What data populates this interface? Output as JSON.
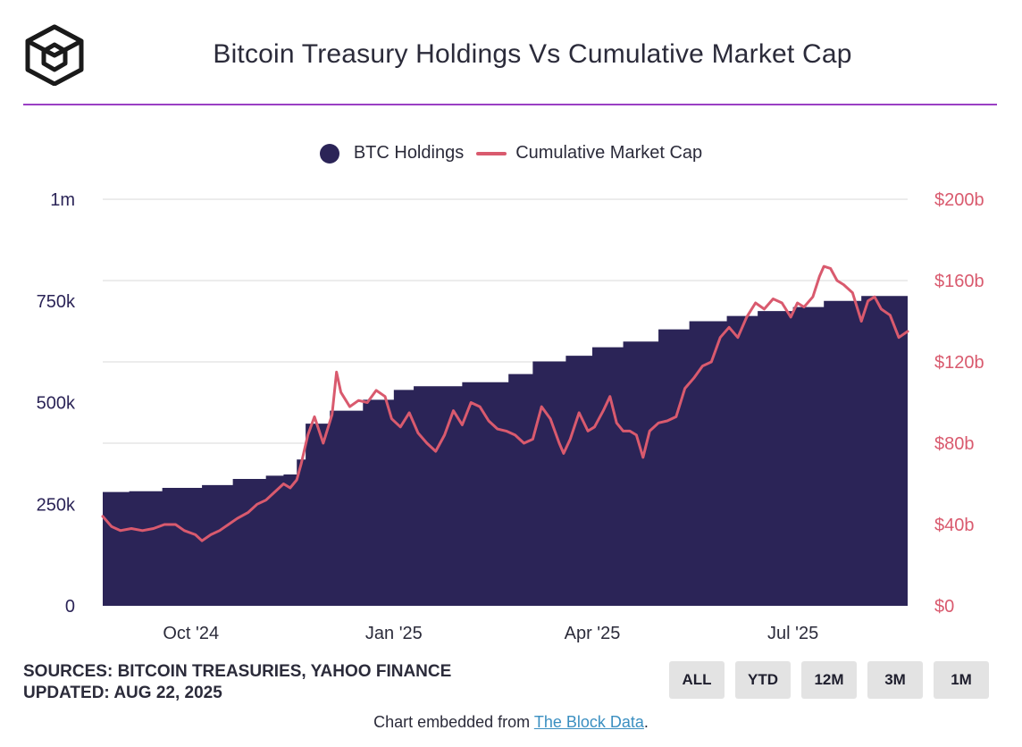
{
  "header": {
    "title": "Bitcoin Treasury Holdings Vs Cumulative Market Cap",
    "logo_icon": "the-block-cube-logo"
  },
  "legend": {
    "holdings_label": "BTC Holdings",
    "marketcap_label": "Cumulative Market Cap"
  },
  "footer": {
    "sources": "SOURCES: BITCOIN TREASURIES, YAHOO FINANCE",
    "updated": "UPDATED: AUG 22, 2025",
    "embed_prefix": "Chart embedded from ",
    "embed_link": "The Block Data",
    "embed_suffix": "."
  },
  "range_buttons": [
    "ALL",
    "YTD",
    "12M",
    "3M",
    "1M"
  ],
  "colors": {
    "holdings": "#2b2457",
    "marketcap": "#d95a6e",
    "accent_rule": "#9a3fc4",
    "grid": "#e6e6e6"
  },
  "chart_data": {
    "type": "area+line",
    "x_range": [
      "2024-08-22",
      "2025-08-22"
    ],
    "x_ticks": [
      {
        "date": "2024-10-01",
        "label": "Oct '24"
      },
      {
        "date": "2025-01-01",
        "label": "Jan '25"
      },
      {
        "date": "2025-04-01",
        "label": "Apr '25"
      },
      {
        "date": "2025-07-01",
        "label": "Jul '25"
      }
    ],
    "y_left": {
      "range": [
        0,
        1000000
      ],
      "ticks": [
        0,
        250000,
        500000,
        750000,
        1000000
      ],
      "tick_labels": [
        "0",
        "250k",
        "500k",
        "750k",
        "1m"
      ]
    },
    "y_right": {
      "range": [
        0,
        200
      ],
      "unit": "$b",
      "ticks": [
        0,
        40,
        80,
        120,
        160,
        200
      ],
      "tick_labels": [
        "$0",
        "$40b",
        "$80b",
        "$120b",
        "$160b",
        "$200b"
      ]
    },
    "series": [
      {
        "name": "BTC Holdings",
        "type": "step-area",
        "axis": "left",
        "points": [
          [
            "2024-08-22",
            280000
          ],
          [
            "2024-09-03",
            282000
          ],
          [
            "2024-09-18",
            290000
          ],
          [
            "2024-10-06",
            297000
          ],
          [
            "2024-10-20",
            312000
          ],
          [
            "2024-11-04",
            320000
          ],
          [
            "2024-11-12",
            323000
          ],
          [
            "2024-11-18",
            360000
          ],
          [
            "2024-11-22",
            448000
          ],
          [
            "2024-12-03",
            480000
          ],
          [
            "2024-12-18",
            507000
          ],
          [
            "2025-01-01",
            531000
          ],
          [
            "2025-01-10",
            540000
          ],
          [
            "2025-02-01",
            550000
          ],
          [
            "2025-02-22",
            570000
          ],
          [
            "2025-03-05",
            601000
          ],
          [
            "2025-03-20",
            615000
          ],
          [
            "2025-04-01",
            636000
          ],
          [
            "2025-04-15",
            650000
          ],
          [
            "2025-05-01",
            680000
          ],
          [
            "2025-05-15",
            700000
          ],
          [
            "2025-06-01",
            713000
          ],
          [
            "2025-06-15",
            725000
          ],
          [
            "2025-07-01",
            735000
          ],
          [
            "2025-07-15",
            750000
          ],
          [
            "2025-08-01",
            762000
          ],
          [
            "2025-08-22",
            774000
          ]
        ]
      },
      {
        "name": "Cumulative Market Cap",
        "type": "line",
        "axis": "right",
        "points": [
          [
            "2024-08-22",
            44
          ],
          [
            "2024-08-26",
            39
          ],
          [
            "2024-08-30",
            37
          ],
          [
            "2024-09-04",
            38
          ],
          [
            "2024-09-09",
            37
          ],
          [
            "2024-09-14",
            38
          ],
          [
            "2024-09-19",
            40
          ],
          [
            "2024-09-24",
            40
          ],
          [
            "2024-09-28",
            37
          ],
          [
            "2024-10-03",
            35
          ],
          [
            "2024-10-06",
            32
          ],
          [
            "2024-10-10",
            35
          ],
          [
            "2024-10-14",
            37
          ],
          [
            "2024-10-18",
            40
          ],
          [
            "2024-10-22",
            43
          ],
          [
            "2024-10-27",
            46
          ],
          [
            "2024-10-31",
            50
          ],
          [
            "2024-11-04",
            52
          ],
          [
            "2024-11-08",
            56
          ],
          [
            "2024-11-12",
            60
          ],
          [
            "2024-11-15",
            58
          ],
          [
            "2024-11-18",
            62
          ],
          [
            "2024-11-20",
            70
          ],
          [
            "2024-11-23",
            84
          ],
          [
            "2024-11-26",
            93
          ],
          [
            "2024-11-30",
            80
          ],
          [
            "2024-12-04",
            94
          ],
          [
            "2024-12-06",
            115
          ],
          [
            "2024-12-08",
            105
          ],
          [
            "2024-12-12",
            98
          ],
          [
            "2024-12-16",
            101
          ],
          [
            "2024-12-20",
            100
          ],
          [
            "2024-12-24",
            106
          ],
          [
            "2024-12-28",
            103
          ],
          [
            "2024-12-31",
            92
          ],
          [
            "2025-01-04",
            88
          ],
          [
            "2025-01-08",
            95
          ],
          [
            "2025-01-12",
            85
          ],
          [
            "2025-01-16",
            80
          ],
          [
            "2025-01-20",
            76
          ],
          [
            "2025-01-24",
            84
          ],
          [
            "2025-01-28",
            96
          ],
          [
            "2025-02-01",
            89
          ],
          [
            "2025-02-05",
            100
          ],
          [
            "2025-02-09",
            98
          ],
          [
            "2025-02-13",
            91
          ],
          [
            "2025-02-17",
            87
          ],
          [
            "2025-02-21",
            86
          ],
          [
            "2025-02-25",
            84
          ],
          [
            "2025-03-01",
            80
          ],
          [
            "2025-03-05",
            82
          ],
          [
            "2025-03-09",
            98
          ],
          [
            "2025-03-13",
            92
          ],
          [
            "2025-03-17",
            80
          ],
          [
            "2025-03-19",
            75
          ],
          [
            "2025-03-22",
            82
          ],
          [
            "2025-03-26",
            95
          ],
          [
            "2025-03-30",
            86
          ],
          [
            "2025-04-02",
            88
          ],
          [
            "2025-04-06",
            96
          ],
          [
            "2025-04-09",
            103
          ],
          [
            "2025-04-12",
            90
          ],
          [
            "2025-04-15",
            86
          ],
          [
            "2025-04-18",
            86
          ],
          [
            "2025-04-21",
            84
          ],
          [
            "2025-04-24",
            73
          ],
          [
            "2025-04-27",
            86
          ],
          [
            "2025-05-01",
            90
          ],
          [
            "2025-05-05",
            91
          ],
          [
            "2025-05-09",
            93
          ],
          [
            "2025-05-13",
            107
          ],
          [
            "2025-05-17",
            112
          ],
          [
            "2025-05-21",
            118
          ],
          [
            "2025-05-25",
            120
          ],
          [
            "2025-05-29",
            132
          ],
          [
            "2025-06-02",
            137
          ],
          [
            "2025-06-06",
            132
          ],
          [
            "2025-06-10",
            142
          ],
          [
            "2025-06-14",
            149
          ],
          [
            "2025-06-18",
            146
          ],
          [
            "2025-06-22",
            151
          ],
          [
            "2025-06-26",
            149
          ],
          [
            "2025-06-30",
            142
          ],
          [
            "2025-07-03",
            149
          ],
          [
            "2025-07-06",
            147
          ],
          [
            "2025-07-10",
            152
          ],
          [
            "2025-07-13",
            162
          ],
          [
            "2025-07-15",
            167
          ],
          [
            "2025-07-18",
            166
          ],
          [
            "2025-07-21",
            160
          ],
          [
            "2025-07-24",
            158
          ],
          [
            "2025-07-28",
            154
          ],
          [
            "2025-08-01",
            140
          ],
          [
            "2025-08-04",
            150
          ],
          [
            "2025-08-07",
            152
          ],
          [
            "2025-08-10",
            146
          ],
          [
            "2025-08-14",
            143
          ],
          [
            "2025-08-18",
            132
          ],
          [
            "2025-08-22",
            135
          ]
        ]
      }
    ]
  }
}
